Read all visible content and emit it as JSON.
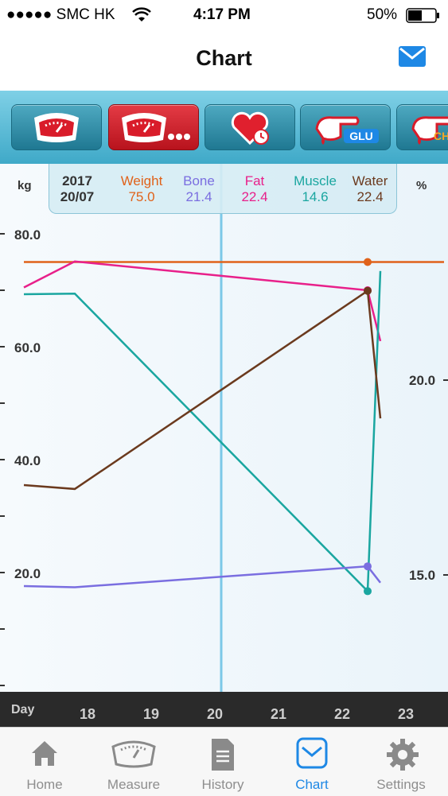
{
  "status": {
    "carrier": "●●●●● SMC HK",
    "time": "4:17 PM",
    "battery": "50%"
  },
  "nav": {
    "title": "Chart",
    "mail_icon": "mail-icon"
  },
  "tabs": [
    {
      "icon": "scale-icon",
      "selected": false
    },
    {
      "icon": "body-composition-scale-icon",
      "selected": true
    },
    {
      "icon": "blood-pressure-heart-icon",
      "selected": false
    },
    {
      "icon": "glucose-icon",
      "label": "GLU",
      "selected": false
    },
    {
      "icon": "cholesterol-icon",
      "label": "CH",
      "selected": false
    }
  ],
  "legend": {
    "year": "2017",
    "date": "20/07",
    "items": [
      {
        "name": "Weight",
        "value": "75.0",
        "color": "#e0621a"
      },
      {
        "name": "Bone",
        "value": "21.4",
        "color": "#7a6ee0"
      },
      {
        "name": "Fat",
        "value": "22.4",
        "color": "#e8208a"
      },
      {
        "name": "Muscle",
        "value": "14.6",
        "color": "#1aa6a0"
      },
      {
        "name": "Water",
        "value": "22.4",
        "color": "#6b3a1e"
      }
    ]
  },
  "axes": {
    "left_unit": "kg",
    "right_unit": "%",
    "left_ticks": [
      "80.0",
      "60.0",
      "40.0",
      "20.0"
    ],
    "right_ticks": [
      "20.0",
      "15.0"
    ],
    "x_title": "Day",
    "x_ticks": [
      "18",
      "19",
      "20",
      "21",
      "22",
      "23"
    ]
  },
  "chart_data": {
    "type": "line",
    "xlabel": "Day",
    "ylabel_left": "kg",
    "ylabel_right": "%",
    "ylim_left": [
      0,
      80
    ],
    "ylim_right": [
      15,
      20
    ],
    "cursor_day": 20.1,
    "series": [
      {
        "name": "Weight",
        "color": "#e0621a",
        "axis": "left",
        "x": [
          17.0,
          17.8,
          22.4,
          23.6
        ],
        "y": [
          75.0,
          75.0,
          75.0,
          75.0
        ]
      },
      {
        "name": "Fat",
        "color": "#e8208a",
        "axis": "left",
        "x": [
          17.0,
          17.8,
          22.4,
          22.6
        ],
        "y": [
          70.5,
          75.1,
          70.0,
          61.0
        ]
      },
      {
        "name": "Muscle",
        "color": "#1aa6a0",
        "axis": "left",
        "x": [
          17.0,
          17.8,
          22.4,
          22.6
        ],
        "y": [
          69.3,
          69.4,
          16.7,
          73.4
        ]
      },
      {
        "name": "Water",
        "color": "#6b3a1e",
        "axis": "left",
        "x": [
          17.0,
          17.8,
          22.4,
          22.6
        ],
        "y": [
          35.5,
          34.8,
          69.9,
          47.3
        ]
      },
      {
        "name": "Bone",
        "color": "#7a6ee0",
        "axis": "left",
        "x": [
          17.0,
          17.8,
          22.4,
          22.6
        ],
        "y": [
          17.6,
          17.4,
          21.1,
          18.2
        ]
      }
    ],
    "markers_day": 22.4
  },
  "tabbar": [
    {
      "label": "Home",
      "icon": "home-icon",
      "active": false
    },
    {
      "label": "Measure",
      "icon": "scale-icon",
      "active": false
    },
    {
      "label": "History",
      "icon": "document-icon",
      "active": false
    },
    {
      "label": "Chart",
      "icon": "chart-mail-icon",
      "active": true
    },
    {
      "label": "Settings",
      "icon": "gear-icon",
      "active": false
    }
  ]
}
